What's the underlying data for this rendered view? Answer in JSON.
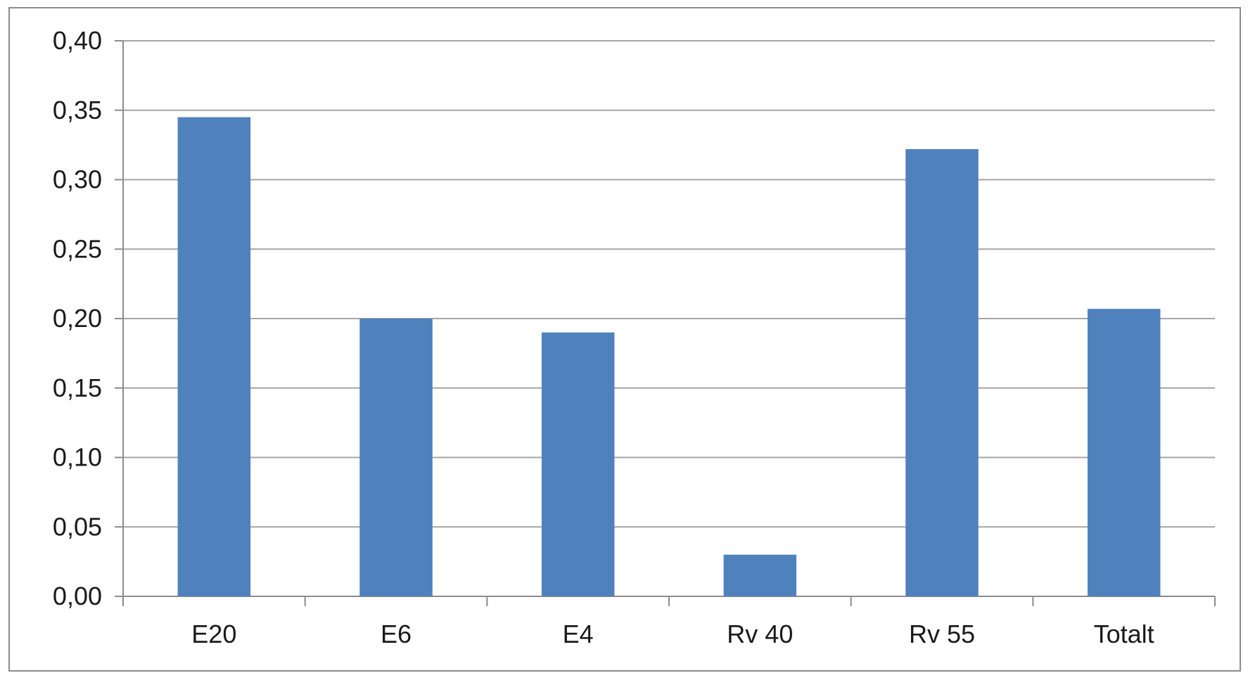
{
  "chart_data": {
    "type": "bar",
    "categories": [
      "E20",
      "E6",
      "E4",
      "Rv 40",
      "Rv 55",
      "Totalt"
    ],
    "series": [
      {
        "values": [
          0.345,
          0.2,
          0.19,
          0.03,
          0.322,
          0.207
        ]
      }
    ],
    "y_ticks": [
      "0,00",
      "0,05",
      "0,10",
      "0,15",
      "0,20",
      "0,25",
      "0,30",
      "0,35",
      "0,40"
    ],
    "ylim": [
      0,
      0.4
    ],
    "grid": true,
    "legend": "none",
    "bar_color": "#4f81bd",
    "grid_color": "#a6a6a6",
    "axis_color": "#8c8c8c"
  }
}
